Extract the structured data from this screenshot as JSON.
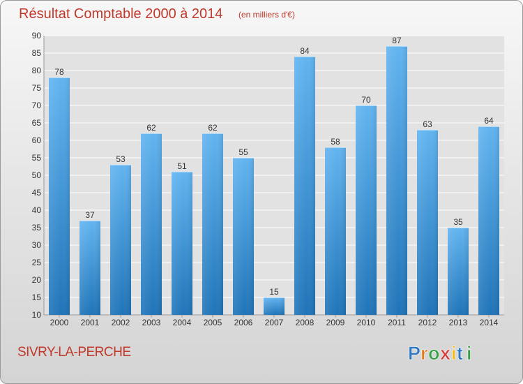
{
  "title": "Résultat Comptable 2000 à 2014",
  "subtitle": "(en milliers d'€)",
  "commune": "SIVRY-LA-PERCHE",
  "logo_text": "Proxiti",
  "colors": {
    "title": "#c0392b",
    "bar_top": "#62b4f0",
    "bar_bottom": "#1f74b8",
    "grid": "#ffffff"
  },
  "chart_data": {
    "type": "bar",
    "title": "Résultat Comptable 2000 à 2014",
    "xlabel": "",
    "ylabel": "",
    "ylim": [
      10,
      90
    ],
    "yticks": [
      10,
      15,
      20,
      25,
      30,
      35,
      40,
      45,
      50,
      55,
      60,
      65,
      70,
      75,
      80,
      85,
      90
    ],
    "grid": true,
    "categories": [
      "2000",
      "2001",
      "2002",
      "2003",
      "2004",
      "2005",
      "2006",
      "2007",
      "2008",
      "2009",
      "2010",
      "2011",
      "2012",
      "2013",
      "2014"
    ],
    "values": [
      78,
      37,
      53,
      62,
      51,
      62,
      55,
      15,
      84,
      58,
      70,
      87,
      63,
      35,
      64
    ]
  }
}
